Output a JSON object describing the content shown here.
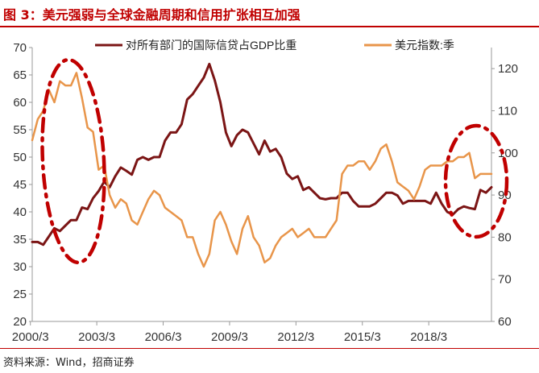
{
  "figure": {
    "title": "图 3：美元强弱与全球金融周期和信用扩张相互加强",
    "source": "资料来源：Wind，招商证券"
  },
  "colors": {
    "title": "#c00000",
    "line_credit": "#7b1515",
    "line_usd": "#e8954a",
    "annotation": "#c00000",
    "axis": "#333333"
  },
  "chart_data": {
    "type": "line",
    "x_tick_labels": [
      "2000/3",
      "2003/3",
      "2006/3",
      "2009/3",
      "2012/3",
      "2015/3",
      "2018/3"
    ],
    "x_range": [
      2000.25,
      2021.0
    ],
    "y_left": {
      "range": [
        20,
        70
      ],
      "ticks": [
        20,
        25,
        30,
        35,
        40,
        45,
        50,
        55,
        60,
        65,
        70
      ]
    },
    "y_right": {
      "range": [
        60,
        125
      ],
      "ticks": [
        60,
        70,
        80,
        90,
        100,
        110,
        120
      ]
    },
    "grid": false,
    "legend_position": "top",
    "series": [
      {
        "name": "对所有部门的国际信贷占GDP比重",
        "axis": "left",
        "x": [
          2000.25,
          2000.5,
          2000.75,
          2001.0,
          2001.25,
          2001.5,
          2001.75,
          2002.0,
          2002.25,
          2002.5,
          2002.75,
          2003.0,
          2003.25,
          2003.5,
          2003.75,
          2004.0,
          2004.25,
          2004.5,
          2004.75,
          2005.0,
          2005.25,
          2005.5,
          2005.75,
          2006.0,
          2006.25,
          2006.5,
          2006.75,
          2007.0,
          2007.25,
          2007.5,
          2007.75,
          2008.0,
          2008.25,
          2008.5,
          2008.75,
          2009.0,
          2009.25,
          2009.5,
          2009.75,
          2010.0,
          2010.25,
          2010.5,
          2010.75,
          2011.0,
          2011.25,
          2011.5,
          2011.75,
          2012.0,
          2012.25,
          2012.5,
          2012.75,
          2013.0,
          2013.25,
          2013.5,
          2013.75,
          2014.0,
          2014.25,
          2014.5,
          2014.75,
          2015.0,
          2015.25,
          2015.5,
          2015.75,
          2016.0,
          2016.25,
          2016.5,
          2016.75,
          2017.0,
          2017.25,
          2017.5,
          2017.75,
          2018.0,
          2018.25,
          2018.5,
          2018.75,
          2019.0,
          2019.25,
          2019.5,
          2019.75,
          2020.0,
          2020.25,
          2020.5,
          2020.75,
          2021.0
        ],
        "values": [
          34.5,
          34.5,
          34.0,
          35.5,
          37.0,
          36.5,
          37.5,
          38.5,
          38.5,
          40.8,
          40.5,
          42.5,
          43.8,
          45.5,
          44.5,
          46.5,
          48.1,
          47.5,
          46.8,
          49.5,
          50.0,
          49.5,
          50.0,
          50.0,
          53.0,
          54.5,
          54.5,
          56.0,
          60.5,
          61.5,
          63.0,
          64.5,
          67.0,
          64.0,
          60.0,
          54.5,
          52.0,
          54.0,
          55.0,
          54.5,
          52.5,
          50.5,
          53.0,
          51.0,
          51.5,
          50.0,
          47.0,
          46.0,
          46.5,
          44.0,
          44.5,
          43.5,
          42.5,
          42.3,
          42.5,
          42.5,
          43.5,
          43.5,
          42.0,
          41.0,
          41.0,
          41.0,
          41.5,
          42.5,
          43.5,
          43.5,
          43.0,
          41.5,
          42.0,
          42.0,
          42.0,
          42.0,
          41.5,
          43.5,
          41.5,
          40.0,
          39.5,
          40.5,
          41.0,
          40.7,
          40.5,
          44.0,
          43.5,
          44.5
        ]
      },
      {
        "name": "美元指数:季",
        "axis": "right",
        "x": [
          2000.25,
          2000.5,
          2000.75,
          2001.0,
          2001.25,
          2001.5,
          2001.75,
          2002.0,
          2002.25,
          2002.5,
          2002.75,
          2003.0,
          2003.25,
          2003.5,
          2003.75,
          2004.0,
          2004.25,
          2004.5,
          2004.75,
          2005.0,
          2005.25,
          2005.5,
          2005.75,
          2006.0,
          2006.25,
          2006.5,
          2006.75,
          2007.0,
          2007.25,
          2007.5,
          2007.75,
          2008.0,
          2008.25,
          2008.5,
          2008.75,
          2009.0,
          2009.25,
          2009.5,
          2009.75,
          2010.0,
          2010.25,
          2010.5,
          2010.75,
          2011.0,
          2011.25,
          2011.5,
          2011.75,
          2012.0,
          2012.25,
          2012.5,
          2012.75,
          2013.0,
          2013.25,
          2013.5,
          2013.75,
          2014.0,
          2014.25,
          2014.5,
          2014.75,
          2015.0,
          2015.25,
          2015.5,
          2015.75,
          2016.0,
          2016.25,
          2016.5,
          2016.75,
          2017.0,
          2017.25,
          2017.5,
          2017.75,
          2018.0,
          2018.25,
          2018.5,
          2018.75,
          2019.0,
          2019.25,
          2019.5,
          2019.75,
          2020.0,
          2020.25,
          2020.5,
          2020.75,
          2021.0
        ],
        "values": [
          103,
          108,
          110,
          115,
          112,
          117,
          116,
          116,
          119,
          113,
          106,
          105,
          96,
          97,
          90,
          87,
          89,
          88,
          84,
          83,
          86,
          89,
          91,
          90,
          87,
          86,
          85,
          84,
          80,
          80,
          76,
          73,
          76,
          84,
          86,
          83,
          79,
          76,
          82,
          85,
          80,
          78,
          74,
          75,
          78,
          80,
          81,
          82,
          80,
          81,
          82,
          80,
          80,
          80,
          82,
          84,
          95,
          97,
          97,
          98,
          98,
          96,
          98,
          101,
          102,
          98,
          93,
          92,
          91,
          89,
          92,
          96,
          97,
          97,
          97,
          98,
          98,
          99,
          99,
          100,
          94,
          95,
          95,
          95
        ]
      }
    ]
  },
  "annotations": {
    "style": "dash-dot ellipse",
    "count": 2
  }
}
